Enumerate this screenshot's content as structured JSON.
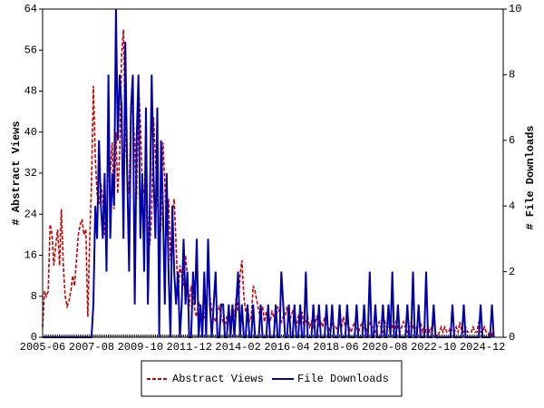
{
  "chart_data": {
    "type": "line",
    "y_label": "# Abstract Views",
    "y2_label": "# File Downloads",
    "categories": [
      "2005-06",
      null,
      null,
      null,
      null,
      null,
      null,
      null,
      null,
      null,
      null,
      null,
      null,
      null,
      null,
      null,
      null,
      null,
      null,
      null,
      null,
      null,
      null,
      null,
      null,
      null,
      "2007-08",
      null,
      null,
      null,
      null,
      null,
      null,
      null,
      null,
      null,
      null,
      null,
      null,
      null,
      null,
      null,
      null,
      null,
      null,
      null,
      null,
      null,
      null,
      null,
      null,
      null,
      "2009-10",
      null,
      null,
      null,
      null,
      null,
      null,
      null,
      null,
      null,
      null,
      null,
      null,
      null,
      null,
      null,
      null,
      null,
      null,
      null,
      null,
      null,
      null,
      null,
      null,
      null,
      "2011-12",
      null,
      null,
      null,
      null,
      null,
      null,
      null,
      null,
      null,
      null,
      null,
      null,
      null,
      null,
      null,
      null,
      null,
      null,
      null,
      null,
      null,
      null,
      null,
      null,
      null,
      "2014-02",
      null,
      null,
      null,
      null,
      null,
      null,
      null,
      null,
      null,
      null,
      null,
      null,
      null,
      null,
      null,
      null,
      null,
      null,
      null,
      null,
      null,
      null,
      null,
      null,
      null,
      "2016-04",
      null,
      null,
      null,
      null,
      null,
      null,
      null,
      null,
      null,
      null,
      null,
      null,
      null,
      null,
      null,
      null,
      null,
      null,
      null,
      null,
      null,
      null,
      null,
      null,
      null,
      "2018-06",
      null,
      null,
      null,
      null,
      null,
      null,
      null,
      null,
      null,
      null,
      null,
      null,
      null,
      null,
      null,
      null,
      null,
      null,
      null,
      null,
      null,
      null,
      null,
      null,
      null,
      "2020-08",
      null,
      null,
      null,
      null,
      null,
      null,
      null,
      null,
      null,
      null,
      null,
      null,
      null,
      null,
      null,
      null,
      null,
      null,
      null,
      null,
      null,
      null,
      null,
      null,
      null,
      "2022-10",
      null,
      null,
      null,
      null,
      null,
      null,
      null,
      null,
      null,
      null,
      null,
      null,
      null,
      null,
      null,
      null,
      null,
      null,
      null,
      null,
      null,
      null,
      null,
      null,
      null,
      "2024-12",
      null,
      null,
      null,
      null,
      null,
      null
    ],
    "series": [
      {
        "name": "Abstract Views",
        "color": "#cc0000",
        "dash": true,
        "axis": "y",
        "values": [
          2,
          9,
          8,
          9,
          22,
          20,
          14,
          18,
          21,
          14,
          25,
          14,
          8,
          6,
          7,
          9,
          12,
          10,
          15,
          20,
          22,
          23,
          20,
          21,
          4,
          18,
          30,
          49,
          35,
          28,
          26,
          30,
          27,
          20,
          22,
          35,
          32,
          38,
          25,
          40,
          28,
          36,
          55,
          60,
          40,
          32,
          28,
          45,
          44,
          38,
          27,
          50,
          42,
          30,
          28,
          35,
          22,
          18,
          24,
          43,
          35,
          28,
          18,
          22,
          38,
          30,
          20,
          27,
          15,
          24,
          27,
          18,
          8,
          14,
          12,
          10,
          16,
          12,
          6,
          10,
          8,
          5,
          4,
          7,
          5,
          3,
          4,
          6,
          12,
          8,
          5,
          4,
          3,
          5,
          6,
          4,
          3,
          2,
          4,
          5,
          3,
          6,
          4,
          8,
          5,
          12,
          15,
          8,
          5,
          6,
          3,
          4,
          10,
          9,
          7,
          5,
          4,
          6,
          3,
          5,
          4,
          3,
          5,
          4,
          3,
          6,
          5,
          3,
          4,
          4,
          6,
          3,
          4,
          5,
          3,
          2,
          4,
          3,
          5,
          2,
          3,
          4,
          2,
          3,
          2,
          3,
          4,
          2,
          3,
          2,
          4,
          3,
          2,
          1,
          3,
          2,
          2,
          1,
          3,
          2,
          4,
          2,
          3,
          2,
          1,
          2,
          3,
          2,
          1,
          2,
          3,
          2,
          1,
          2,
          3,
          2,
          2,
          1,
          2,
          3,
          2,
          1,
          3,
          2,
          2,
          4,
          2,
          1,
          3,
          2,
          1,
          2,
          3,
          2,
          1,
          2,
          3,
          2,
          1,
          2,
          2,
          3,
          1,
          2,
          1,
          2,
          1,
          2,
          3,
          1,
          0,
          1,
          2,
          1,
          2,
          1,
          1,
          2,
          1,
          1,
          2,
          1,
          3,
          1,
          1,
          2,
          1,
          1,
          1,
          2,
          1,
          1,
          3,
          1,
          1,
          2,
          1,
          1,
          0,
          1,
          0
        ]
      },
      {
        "name": "File Downloads",
        "color": "#0000aa",
        "dash": false,
        "axis": "y2",
        "values": [
          0,
          0,
          0,
          0,
          0,
          0,
          0,
          0,
          0,
          0,
          0,
          0,
          0,
          0,
          0,
          0,
          0,
          0,
          0,
          0,
          0,
          0,
          0,
          0,
          0,
          0,
          0,
          1,
          4,
          3,
          6,
          4,
          3,
          5,
          2,
          8,
          3,
          5,
          4,
          10,
          6,
          8,
          7,
          3,
          9,
          5,
          2,
          7,
          8,
          1,
          6,
          8,
          3,
          5,
          2,
          7,
          1,
          4,
          8,
          5,
          3,
          7,
          0,
          6,
          4,
          1,
          5,
          2,
          0,
          4,
          2,
          1,
          2,
          0,
          1,
          3,
          1,
          2,
          0,
          0,
          2,
          1,
          3,
          0,
          1,
          0,
          2,
          0,
          3,
          1,
          0,
          1,
          2,
          0,
          0,
          1,
          1,
          0,
          0,
          1,
          0,
          1,
          0,
          1,
          2,
          0,
          1,
          0,
          0,
          1,
          0,
          0,
          1,
          0,
          0,
          0,
          1,
          0,
          0,
          0,
          1,
          0,
          0,
          0,
          1,
          0,
          0,
          2,
          1,
          0,
          0,
          1,
          0,
          0,
          1,
          0,
          0,
          1,
          0,
          0,
          2,
          0,
          0,
          0,
          1,
          0,
          0,
          1,
          0,
          0,
          0,
          1,
          0,
          0,
          1,
          0,
          0,
          0,
          1,
          0,
          0,
          0,
          1,
          0,
          0,
          0,
          0,
          1,
          0,
          0,
          0,
          1,
          0,
          0,
          2,
          0,
          0,
          1,
          0,
          0,
          0,
          1,
          0,
          0,
          1,
          0,
          2,
          0,
          0,
          1,
          0,
          0,
          0,
          0,
          1,
          0,
          0,
          2,
          0,
          0,
          1,
          0,
          0,
          0,
          2,
          0,
          0,
          0,
          1,
          0,
          0,
          0,
          0,
          0,
          0,
          0,
          0,
          0,
          1,
          0,
          0,
          0,
          0,
          0,
          1,
          0,
          0,
          0,
          0,
          0,
          0,
          0,
          0,
          1,
          0,
          0,
          0,
          0,
          0,
          1,
          0
        ]
      }
    ],
    "ylim": [
      0,
      64
    ],
    "yticks": [
      0,
      8,
      16,
      24,
      32,
      40,
      48,
      56,
      64
    ],
    "y2lim": [
      0,
      10
    ],
    "y2ticks": [
      0,
      2,
      4,
      6,
      8,
      10
    ],
    "grid": false
  }
}
